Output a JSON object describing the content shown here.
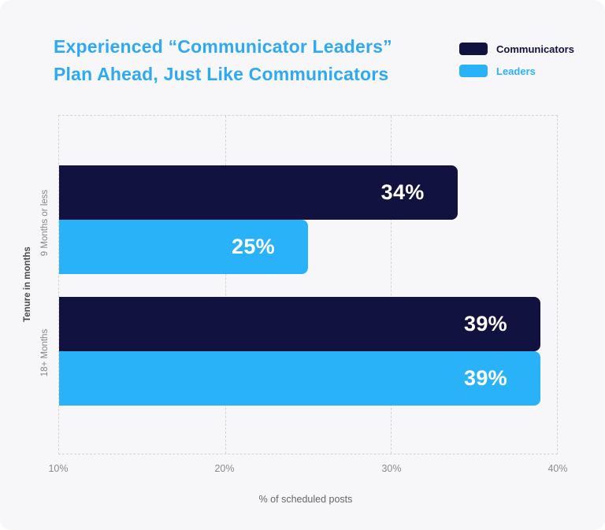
{
  "header": {
    "title_line1": "Experienced “Communicator Leaders”",
    "title_line2": "Plan Ahead, Just Like Communicators",
    "title_color": "#2fa9f1"
  },
  "chart_data": {
    "type": "bar",
    "orientation": "horizontal",
    "title": "Experienced “Communicator Leaders” Plan Ahead, Just Like Communicators",
    "categories": [
      "9 Months or less",
      "18+ Months"
    ],
    "series": [
      {
        "name": "Communicators",
        "color": "#121240",
        "values": [
          34,
          39
        ]
      },
      {
        "name": "Leaders",
        "color": "#2ab2f9",
        "values": [
          25,
          39
        ]
      }
    ],
    "value_labels": [
      "34%",
      "25%",
      "39%",
      "39%"
    ],
    "xlabel": "% of scheduled posts",
    "ylabel": "Tenure in months",
    "x_axis": {
      "min": 10,
      "max": 40,
      "ticks": [
        "10%",
        "20%",
        "30%",
        "40%"
      ]
    },
    "grid": "vertical-dashed",
    "legend_position": "top-right",
    "background_color": "#f7f7f9"
  }
}
